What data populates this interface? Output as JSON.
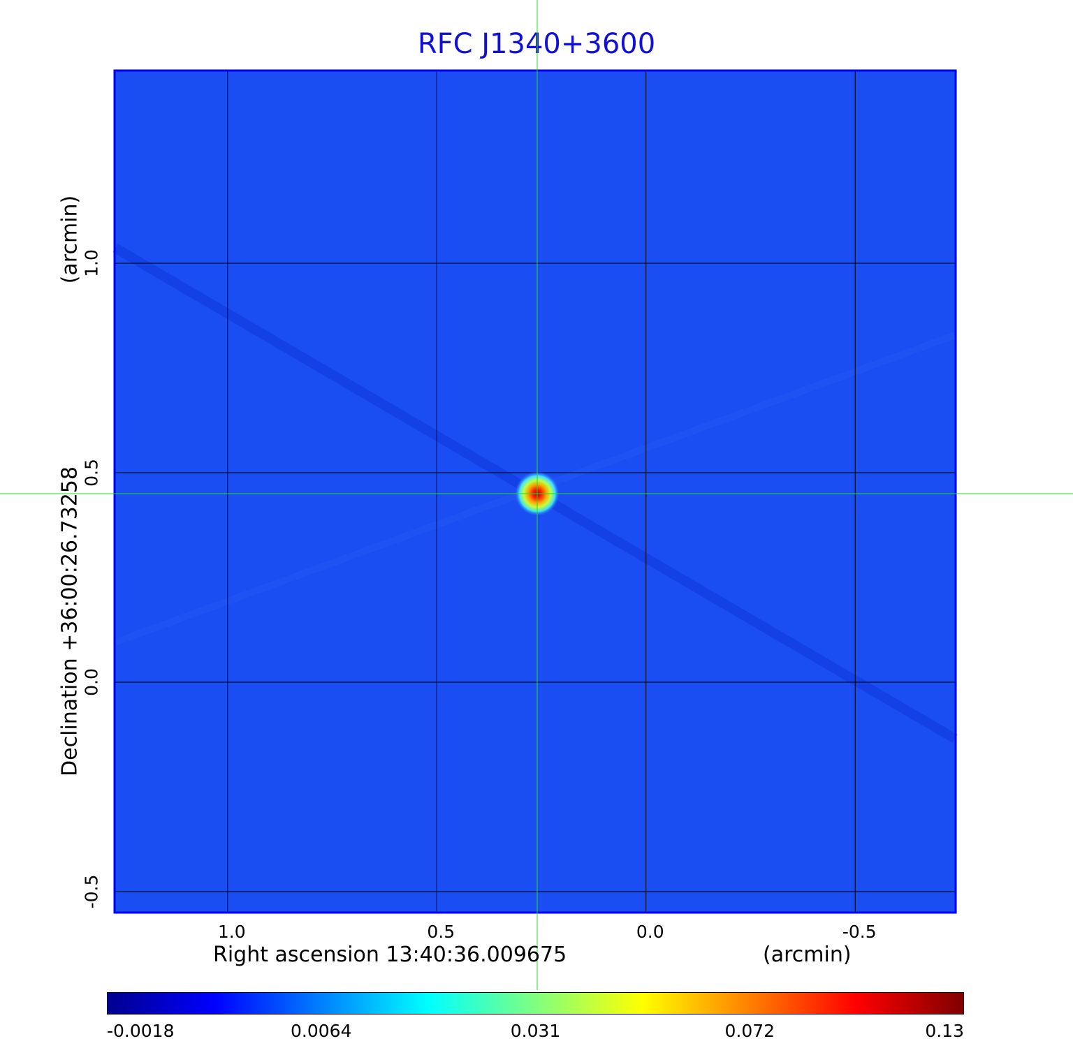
{
  "chart_data": {
    "type": "heatmap",
    "title": "RFC J1340+3600",
    "xlabel": "Right ascension  13:40:36.009675",
    "xlabel_unit": "(arcmin)",
    "ylabel": "Declination  +36:00:26.73258",
    "ylabel_unit": "(arcmin)",
    "xlim": [
      1.27,
      -0.74
    ],
    "ylim": [
      -0.55,
      1.46
    ],
    "x_ticks": [
      {
        "value": 1.0,
        "label": "1.0"
      },
      {
        "value": 0.5,
        "label": "0.5"
      },
      {
        "value": 0.0,
        "label": "0.0"
      },
      {
        "value": -0.5,
        "label": "-0.5"
      }
    ],
    "y_ticks": [
      {
        "value": 1.0,
        "label": "1.0"
      },
      {
        "value": 0.5,
        "label": "0.5"
      },
      {
        "value": 0.0,
        "label": "0.0"
      },
      {
        "value": -0.5,
        "label": "-0.5"
      }
    ],
    "grid": true,
    "colormap": "jet",
    "background_value": 0.002,
    "peak": {
      "x": 0.26,
      "y": 0.45,
      "value": 0.13
    },
    "crosshair": {
      "x": 0.26,
      "y": 0.45,
      "color": "#22dd22"
    },
    "colorbar": {
      "ticks": [
        {
          "value": -0.0018,
          "label": "-0.0018"
        },
        {
          "value": 0.0064,
          "label": "0.0064"
        },
        {
          "value": 0.031,
          "label": "0.031"
        },
        {
          "value": 0.072,
          "label": "0.072"
        },
        {
          "value": 0.13,
          "label": "0.13"
        }
      ],
      "colors": [
        "#00008f",
        "#0000ff",
        "#0080ff",
        "#00ffff",
        "#80ff80",
        "#ffff00",
        "#ff8000",
        "#ff0000",
        "#800000"
      ]
    },
    "colors": {
      "title": "#1010d8",
      "frame": "#0000ff",
      "background": "#1a4df2",
      "grid": "#000000"
    }
  }
}
